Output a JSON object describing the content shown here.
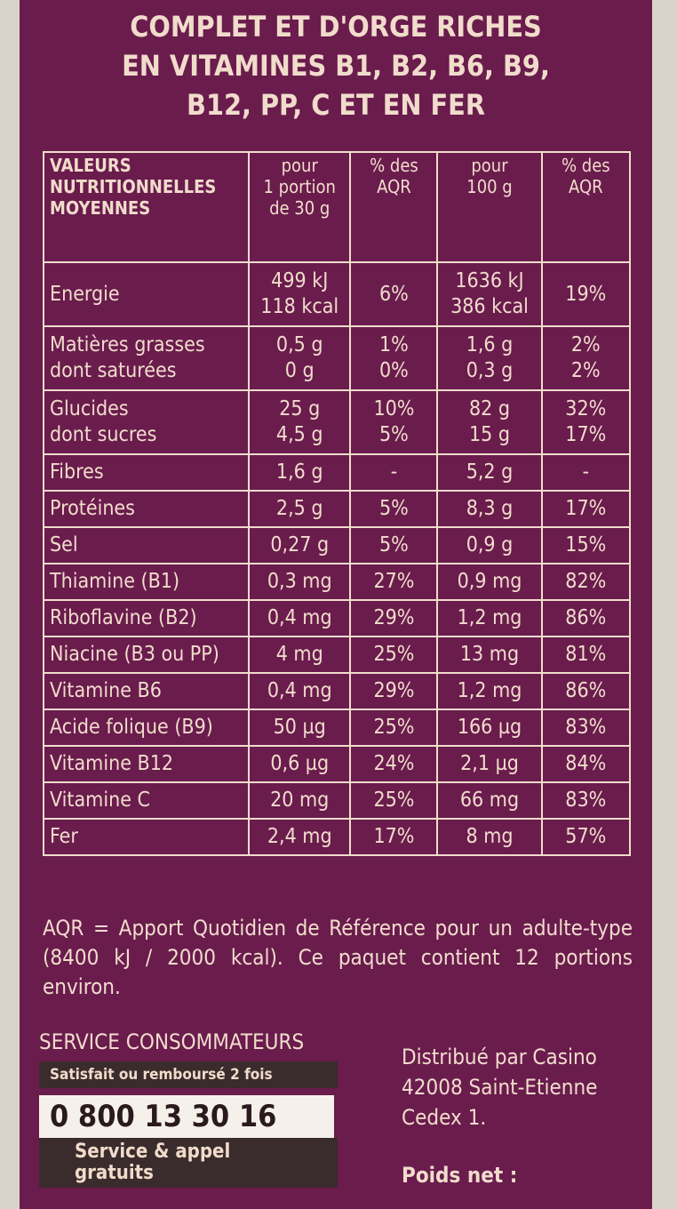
{
  "heading": [
    "COMPLET ET D'ORGE RICHES",
    "EN VITAMINES B1, B2, B6, B9,",
    "B12, PP, C ET EN FER"
  ],
  "table": {
    "header": [
      "VALEURS\nNUTRITIONNELLES\nMOYENNES",
      "pour\n1 portion\nde 30 g",
      "% des\nAQR",
      "pour\n100 g",
      "% des\nAQR"
    ],
    "rows": [
      [
        "Energie",
        "499 kJ\n118 kcal",
        "6%",
        "1636 kJ\n386 kcal",
        "19%"
      ],
      [
        "Matières grasses\ndont saturées",
        "0,5 g\n0 g",
        "1%\n0%",
        "1,6 g\n0,3 g",
        "2%\n2%"
      ],
      [
        "Glucides\ndont sucres",
        "25 g\n4,5 g",
        "10%\n5%",
        "82 g\n15 g",
        "32%\n17%"
      ],
      [
        "Fibres",
        "1,6 g",
        "-",
        "5,2 g",
        "-"
      ],
      [
        "Protéines",
        "2,5 g",
        "5%",
        "8,3 g",
        "17%"
      ],
      [
        "Sel",
        "0,27 g",
        "5%",
        "0,9 g",
        "15%"
      ],
      [
        "Thiamine (B1)",
        "0,3 mg",
        "27%",
        "0,9 mg",
        "82%"
      ],
      [
        "Riboflavine (B2)",
        "0,4 mg",
        "29%",
        "1,2 mg",
        "86%"
      ],
      [
        "Niacine (B3 ou PP)",
        "4 mg",
        "25%",
        "13 mg",
        "81%"
      ],
      [
        "Vitamine B6",
        "0,4 mg",
        "29%",
        "1,2 mg",
        "86%"
      ],
      [
        "Acide folique (B9)",
        "50 µg",
        "25%",
        "166 µg",
        "83%"
      ],
      [
        "Vitamine B12",
        "0,6 µg",
        "24%",
        "2,1 µg",
        "84%"
      ],
      [
        "Vitamine C",
        "20 mg",
        "25%",
        "66 mg",
        "83%"
      ],
      [
        "Fer",
        "2,4 mg",
        "17%",
        "8 mg",
        "57%"
      ]
    ]
  },
  "footnote": "AQR = Apport Quotidien de Référence pour un adulte-type (8400 kJ / 2000 kcal). Ce paquet contient 12 portions environ.",
  "service": {
    "title": "SERVICE CONSOMMATEURS",
    "banner": "Satisfait ou remboursé 2 fois",
    "phone": "0 800 13 30 16",
    "note": "Service & appel\ngratuits"
  },
  "distributor": "Distribué par Casino\n42008 Saint-Etienne\nCedex 1.",
  "weight_label": "Poids net :"
}
